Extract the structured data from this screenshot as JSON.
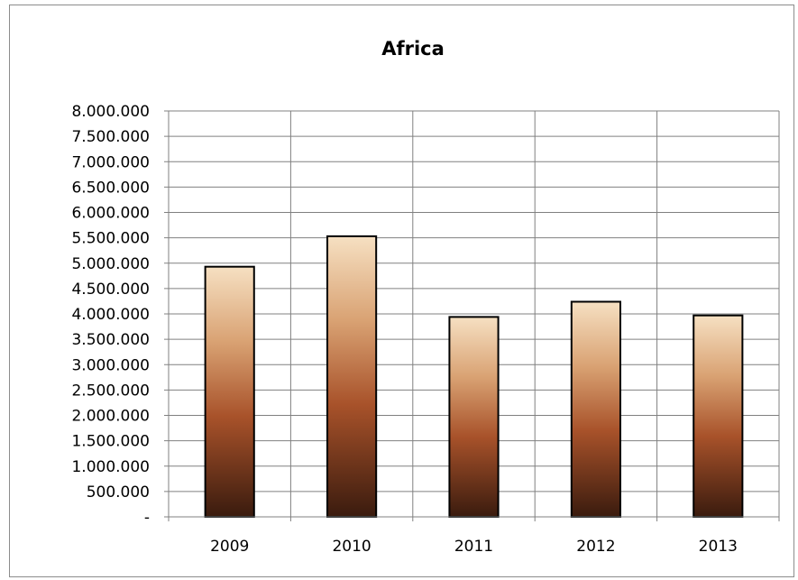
{
  "chart_data": {
    "type": "bar",
    "title": "Africa",
    "xlabel": "",
    "ylabel": "",
    "categories": [
      "2009",
      "2010",
      "2011",
      "2012",
      "2013"
    ],
    "values": [
      4930000,
      5530000,
      3940000,
      4240000,
      3970000
    ],
    "ylim": [
      0,
      8000000
    ],
    "y_step": 500000,
    "y_tick_labels": [
      "-",
      "500.000",
      "1.000.000",
      "1.500.000",
      "2.000.000",
      "2.500.000",
      "3.000.000",
      "3.500.000",
      "4.000.000",
      "4.500.000",
      "5.000.000",
      "5.500.000",
      "6.000.000",
      "6.500.000",
      "7.000.000",
      "7.500.000",
      "8.000.000"
    ],
    "grid": true,
    "legend": "none",
    "colors": {
      "bar_top": "#f6e0c2",
      "bar_mid_light": "#d9a273",
      "bar_mid": "#a8522a",
      "bar_bottom": "#3a1b0e",
      "bar_outline": "#000000",
      "grid": "#808080",
      "axis": "#808080",
      "frame": "#8c8c8c"
    }
  }
}
